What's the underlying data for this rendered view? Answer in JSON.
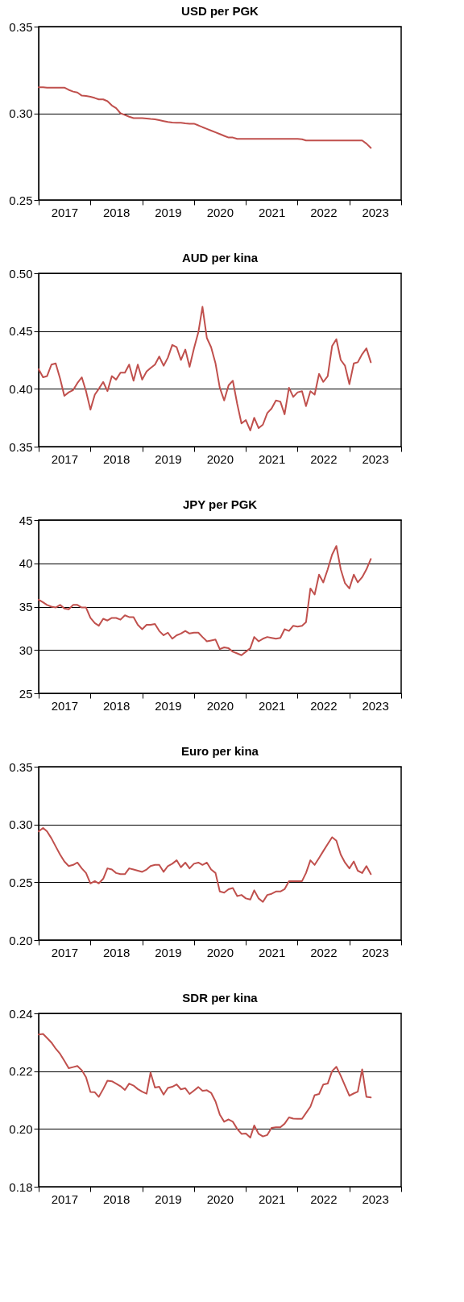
{
  "chart_data": [
    {
      "type": "line",
      "title": "USD per PGK",
      "x": [
        "2017-01",
        "2017-02",
        "2017-03",
        "2017-04",
        "2017-05",
        "2017-06",
        "2017-07",
        "2017-08",
        "2017-09",
        "2017-10",
        "2017-11",
        "2017-12",
        "2018-01",
        "2018-02",
        "2018-03",
        "2018-04",
        "2018-05",
        "2018-06",
        "2018-07",
        "2018-08",
        "2018-09",
        "2018-10",
        "2018-11",
        "2018-12",
        "2019-01",
        "2019-02",
        "2019-03",
        "2019-04",
        "2019-05",
        "2019-06",
        "2019-07",
        "2019-08",
        "2019-09",
        "2019-10",
        "2019-11",
        "2019-12",
        "2020-01",
        "2020-02",
        "2020-03",
        "2020-04",
        "2020-05",
        "2020-06",
        "2020-07",
        "2020-08",
        "2020-09",
        "2020-10",
        "2020-11",
        "2020-12",
        "2021-01",
        "2021-02",
        "2021-03",
        "2021-04",
        "2021-05",
        "2021-06",
        "2021-07",
        "2021-08",
        "2021-09",
        "2021-10",
        "2021-11",
        "2021-12",
        "2022-01",
        "2022-02",
        "2022-03",
        "2022-04",
        "2022-05",
        "2022-06",
        "2022-07",
        "2022-08",
        "2022-09",
        "2022-10",
        "2022-11",
        "2022-12",
        "2023-01",
        "2023-02",
        "2023-03",
        "2023-04",
        "2023-05",
        "2023-06"
      ],
      "series": [
        {
          "color": "#c0504d",
          "values": [
            0.315,
            0.315,
            0.3148,
            0.3148,
            0.3148,
            0.3148,
            0.3148,
            0.3135,
            0.3125,
            0.312,
            0.3102,
            0.31,
            0.3095,
            0.3088,
            0.308,
            0.308,
            0.307,
            0.3045,
            0.303,
            0.3,
            0.299,
            0.298,
            0.2972,
            0.2972,
            0.2972,
            0.297,
            0.2967,
            0.2965,
            0.296,
            0.2955,
            0.295,
            0.2947,
            0.2945,
            0.2945,
            0.2942,
            0.294,
            0.294,
            0.293,
            0.292,
            0.291,
            0.29,
            0.289,
            0.288,
            0.287,
            0.286,
            0.286,
            0.2852,
            0.2852,
            0.2852,
            0.2852,
            0.2852,
            0.2852,
            0.2852,
            0.2852,
            0.2852,
            0.2852,
            0.2852,
            0.2852,
            0.2852,
            0.2852,
            0.2852,
            0.285,
            0.2843,
            0.2843,
            0.2843,
            0.2843,
            0.2843,
            0.2843,
            0.2843,
            0.2843,
            0.2843,
            0.2843,
            0.2843,
            0.2843,
            0.2843,
            0.2843,
            0.2825,
            0.28
          ]
        }
      ],
      "xlim": [
        "2017-01",
        "2024-01"
      ],
      "xticks": [
        {
          "value": "2017-01",
          "label": null
        },
        {
          "value": "2017-07",
          "label": "2017"
        },
        {
          "value": "2018-01",
          "label": null
        },
        {
          "value": "2018-07",
          "label": "2018"
        },
        {
          "value": "2019-01",
          "label": null
        },
        {
          "value": "2019-07",
          "label": "2019"
        },
        {
          "value": "2020-01",
          "label": null
        },
        {
          "value": "2020-07",
          "label": "2020"
        },
        {
          "value": "2021-01",
          "label": null
        },
        {
          "value": "2021-07",
          "label": "2021"
        },
        {
          "value": "2022-01",
          "label": null
        },
        {
          "value": "2022-07",
          "label": "2022"
        },
        {
          "value": "2023-01",
          "label": null
        },
        {
          "value": "2023-07",
          "label": "2023"
        },
        {
          "value": "2024-01",
          "label": null
        }
      ],
      "ylim": [
        0.25,
        0.35
      ],
      "yticks": [
        0.25,
        {
          "value": 0.3,
          "label": "0.30"
        },
        0.35
      ],
      "grid": "y"
    },
    {
      "type": "line",
      "title": "AUD per kina",
      "x": [
        "2017-01",
        "2017-02",
        "2017-03",
        "2017-04",
        "2017-05",
        "2017-06",
        "2017-07",
        "2017-08",
        "2017-09",
        "2017-10",
        "2017-11",
        "2017-12",
        "2018-01",
        "2018-02",
        "2018-03",
        "2018-04",
        "2018-05",
        "2018-06",
        "2018-07",
        "2018-08",
        "2018-09",
        "2018-10",
        "2018-11",
        "2018-12",
        "2019-01",
        "2019-02",
        "2019-03",
        "2019-04",
        "2019-05",
        "2019-06",
        "2019-07",
        "2019-08",
        "2019-09",
        "2019-10",
        "2019-11",
        "2019-12",
        "2020-01",
        "2020-02",
        "2020-03",
        "2020-04",
        "2020-05",
        "2020-06",
        "2020-07",
        "2020-08",
        "2020-09",
        "2020-10",
        "2020-11",
        "2020-12",
        "2021-01",
        "2021-02",
        "2021-03",
        "2021-04",
        "2021-05",
        "2021-06",
        "2021-07",
        "2021-08",
        "2021-09",
        "2021-10",
        "2021-11",
        "2021-12",
        "2022-01",
        "2022-02",
        "2022-03",
        "2022-04",
        "2022-05",
        "2022-06",
        "2022-07",
        "2022-08",
        "2022-09",
        "2022-10",
        "2022-11",
        "2022-12",
        "2023-01",
        "2023-02",
        "2023-03",
        "2023-04",
        "2023-05",
        "2023-06"
      ],
      "series": [
        {
          "color": "#c0504d",
          "values": [
            0.417,
            0.41,
            0.411,
            0.421,
            0.422,
            0.409,
            0.394,
            0.397,
            0.399,
            0.405,
            0.41,
            0.398,
            0.382,
            0.395,
            0.4,
            0.406,
            0.398,
            0.411,
            0.408,
            0.414,
            0.414,
            0.421,
            0.407,
            0.421,
            0.408,
            0.415,
            0.418,
            0.421,
            0.428,
            0.42,
            0.427,
            0.438,
            0.436,
            0.425,
            0.434,
            0.419,
            0.435,
            0.449,
            0.471,
            0.444,
            0.436,
            0.422,
            0.401,
            0.39,
            0.403,
            0.407,
            0.387,
            0.37,
            0.373,
            0.364,
            0.375,
            0.366,
            0.369,
            0.379,
            0.383,
            0.39,
            0.389,
            0.378,
            0.401,
            0.393,
            0.397,
            0.398,
            0.385,
            0.398,
            0.395,
            0.413,
            0.406,
            0.411,
            0.437,
            0.443,
            0.425,
            0.42,
            0.404,
            0.422,
            0.423,
            0.43,
            0.435,
            0.423
          ]
        }
      ],
      "xlim": [
        "2017-01",
        "2024-01"
      ],
      "xticks": [
        {
          "value": "2017-01",
          "label": null
        },
        {
          "value": "2017-07",
          "label": "2017"
        },
        {
          "value": "2018-01",
          "label": null
        },
        {
          "value": "2018-07",
          "label": "2018"
        },
        {
          "value": "2019-01",
          "label": null
        },
        {
          "value": "2019-07",
          "label": "2019"
        },
        {
          "value": "2020-01",
          "label": null
        },
        {
          "value": "2020-07",
          "label": "2020"
        },
        {
          "value": "2021-01",
          "label": null
        },
        {
          "value": "2021-07",
          "label": "2021"
        },
        {
          "value": "2022-01",
          "label": null
        },
        {
          "value": "2022-07",
          "label": "2022"
        },
        {
          "value": "2023-01",
          "label": null
        },
        {
          "value": "2023-07",
          "label": "2023"
        },
        {
          "value": "2024-01",
          "label": null
        }
      ],
      "ylim": [
        0.35,
        0.5
      ],
      "yticks": [
        0.35,
        {
          "value": 0.4,
          "label": "0.40"
        },
        0.45,
        {
          "value": 0.5,
          "label": "0.50"
        }
      ],
      "grid": "y"
    },
    {
      "type": "line",
      "title": "JPY per PGK",
      "x": [
        "2017-01",
        "2017-02",
        "2017-03",
        "2017-04",
        "2017-05",
        "2017-06",
        "2017-07",
        "2017-08",
        "2017-09",
        "2017-10",
        "2017-11",
        "2017-12",
        "2018-01",
        "2018-02",
        "2018-03",
        "2018-04",
        "2018-05",
        "2018-06",
        "2018-07",
        "2018-08",
        "2018-09",
        "2018-10",
        "2018-11",
        "2018-12",
        "2019-01",
        "2019-02",
        "2019-03",
        "2019-04",
        "2019-05",
        "2019-06",
        "2019-07",
        "2019-08",
        "2019-09",
        "2019-10",
        "2019-11",
        "2019-12",
        "2020-01",
        "2020-02",
        "2020-03",
        "2020-04",
        "2020-05",
        "2020-06",
        "2020-07",
        "2020-08",
        "2020-09",
        "2020-10",
        "2020-11",
        "2020-12",
        "2021-01",
        "2021-02",
        "2021-03",
        "2021-04",
        "2021-05",
        "2021-06",
        "2021-07",
        "2021-08",
        "2021-09",
        "2021-10",
        "2021-11",
        "2021-12",
        "2022-01",
        "2022-02",
        "2022-03",
        "2022-04",
        "2022-05",
        "2022-06",
        "2022-07",
        "2022-08",
        "2022-09",
        "2022-10",
        "2022-11",
        "2022-12",
        "2023-01",
        "2023-02",
        "2023-03",
        "2023-04",
        "2023-05",
        "2023-06"
      ],
      "series": [
        {
          "color": "#c0504d",
          "values": [
            35.8,
            35.5,
            35.2,
            35.0,
            34.9,
            35.2,
            34.8,
            34.7,
            35.2,
            35.2,
            34.9,
            34.9,
            33.7,
            33.1,
            32.8,
            33.6,
            33.4,
            33.7,
            33.7,
            33.5,
            34.0,
            33.8,
            33.8,
            32.9,
            32.4,
            32.9,
            32.9,
            33.0,
            32.2,
            31.7,
            32.0,
            31.3,
            31.7,
            31.9,
            32.2,
            31.9,
            32.0,
            32.0,
            31.5,
            31.0,
            31.1,
            31.2,
            30.1,
            30.3,
            30.2,
            29.8,
            29.6,
            29.4,
            29.8,
            30.2,
            31.5,
            31.0,
            31.3,
            31.5,
            31.4,
            31.3,
            31.4,
            32.4,
            32.2,
            32.8,
            32.7,
            32.8,
            33.2,
            37.1,
            36.4,
            38.7,
            37.8,
            39.3,
            41.0,
            42.0,
            39.3,
            37.7,
            37.1,
            38.7,
            37.8,
            38.4,
            39.3,
            40.5
          ]
        }
      ],
      "xlim": [
        "2017-01",
        "2024-01"
      ],
      "xticks": [
        {
          "value": "2017-01",
          "label": null
        },
        {
          "value": "2017-07",
          "label": "2017"
        },
        {
          "value": "2018-01",
          "label": null
        },
        {
          "value": "2018-07",
          "label": "2018"
        },
        {
          "value": "2019-01",
          "label": null
        },
        {
          "value": "2019-07",
          "label": "2019"
        },
        {
          "value": "2020-01",
          "label": null
        },
        {
          "value": "2020-07",
          "label": "2020"
        },
        {
          "value": "2021-01",
          "label": null
        },
        {
          "value": "2021-07",
          "label": "2021"
        },
        {
          "value": "2022-01",
          "label": null
        },
        {
          "value": "2022-07",
          "label": "2022"
        },
        {
          "value": "2023-01",
          "label": null
        },
        {
          "value": "2023-07",
          "label": "2023"
        },
        {
          "value": "2024-01",
          "label": null
        }
      ],
      "ylim": [
        25,
        45
      ],
      "yticks": [
        25,
        30,
        35,
        40,
        45
      ],
      "grid": "y"
    },
    {
      "type": "line",
      "title": "Euro per kina",
      "x": [
        "2017-01",
        "2017-02",
        "2017-03",
        "2017-04",
        "2017-05",
        "2017-06",
        "2017-07",
        "2017-08",
        "2017-09",
        "2017-10",
        "2017-11",
        "2017-12",
        "2018-01",
        "2018-02",
        "2018-03",
        "2018-04",
        "2018-05",
        "2018-06",
        "2018-07",
        "2018-08",
        "2018-09",
        "2018-10",
        "2018-11",
        "2018-12",
        "2019-01",
        "2019-02",
        "2019-03",
        "2019-04",
        "2019-05",
        "2019-06",
        "2019-07",
        "2019-08",
        "2019-09",
        "2019-10",
        "2019-11",
        "2019-12",
        "2020-01",
        "2020-02",
        "2020-03",
        "2020-04",
        "2020-05",
        "2020-06",
        "2020-07",
        "2020-08",
        "2020-09",
        "2020-10",
        "2020-11",
        "2020-12",
        "2021-01",
        "2021-02",
        "2021-03",
        "2021-04",
        "2021-05",
        "2021-06",
        "2021-07",
        "2021-08",
        "2021-09",
        "2021-10",
        "2021-11",
        "2021-12",
        "2022-01",
        "2022-02",
        "2022-03",
        "2022-04",
        "2022-05",
        "2022-06",
        "2022-07",
        "2022-08",
        "2022-09",
        "2022-10",
        "2022-11",
        "2022-12",
        "2023-01",
        "2023-02",
        "2023-03",
        "2023-04",
        "2023-05",
        "2023-06"
      ],
      "series": [
        {
          "color": "#c0504d",
          "values": [
            0.294,
            0.297,
            0.294,
            0.288,
            0.281,
            0.274,
            0.268,
            0.264,
            0.265,
            0.267,
            0.262,
            0.258,
            0.249,
            0.251,
            0.249,
            0.253,
            0.262,
            0.261,
            0.258,
            0.257,
            0.257,
            0.262,
            0.261,
            0.26,
            0.259,
            0.261,
            0.264,
            0.265,
            0.265,
            0.259,
            0.264,
            0.266,
            0.269,
            0.263,
            0.267,
            0.262,
            0.266,
            0.267,
            0.265,
            0.267,
            0.261,
            0.258,
            0.242,
            0.241,
            0.244,
            0.245,
            0.238,
            0.239,
            0.236,
            0.235,
            0.243,
            0.236,
            0.233,
            0.239,
            0.24,
            0.242,
            0.242,
            0.244,
            0.251,
            0.251,
            0.251,
            0.251,
            0.258,
            0.269,
            0.265,
            0.271,
            0.277,
            0.283,
            0.289,
            0.286,
            0.274,
            0.267,
            0.262,
            0.268,
            0.26,
            0.258,
            0.264,
            0.257
          ]
        }
      ],
      "xlim": [
        "2017-01",
        "2024-01"
      ],
      "xticks": [
        {
          "value": "2017-01",
          "label": null
        },
        {
          "value": "2017-07",
          "label": "2017"
        },
        {
          "value": "2018-01",
          "label": null
        },
        {
          "value": "2018-07",
          "label": "2018"
        },
        {
          "value": "2019-01",
          "label": null
        },
        {
          "value": "2019-07",
          "label": "2019"
        },
        {
          "value": "2020-01",
          "label": null
        },
        {
          "value": "2020-07",
          "label": "2020"
        },
        {
          "value": "2021-01",
          "label": null
        },
        {
          "value": "2021-07",
          "label": "2021"
        },
        {
          "value": "2022-01",
          "label": null
        },
        {
          "value": "2022-07",
          "label": "2022"
        },
        {
          "value": "2023-01",
          "label": null
        },
        {
          "value": "2023-07",
          "label": "2023"
        },
        {
          "value": "2024-01",
          "label": null
        }
      ],
      "ylim": [
        0.2,
        0.35
      ],
      "yticks": [
        {
          "value": 0.2,
          "label": "0.20"
        },
        0.25,
        {
          "value": 0.3,
          "label": "0.30"
        },
        0.35
      ],
      "grid": "y"
    },
    {
      "type": "line",
      "title": "SDR per kina",
      "x": [
        "2017-01",
        "2017-02",
        "2017-03",
        "2017-04",
        "2017-05",
        "2017-06",
        "2017-07",
        "2017-08",
        "2017-09",
        "2017-10",
        "2017-11",
        "2017-12",
        "2018-01",
        "2018-02",
        "2018-03",
        "2018-04",
        "2018-05",
        "2018-06",
        "2018-07",
        "2018-08",
        "2018-09",
        "2018-10",
        "2018-11",
        "2018-12",
        "2019-01",
        "2019-02",
        "2019-03",
        "2019-04",
        "2019-05",
        "2019-06",
        "2019-07",
        "2019-08",
        "2019-09",
        "2019-10",
        "2019-11",
        "2019-12",
        "2020-01",
        "2020-02",
        "2020-03",
        "2020-04",
        "2020-05",
        "2020-06",
        "2020-07",
        "2020-08",
        "2020-09",
        "2020-10",
        "2020-11",
        "2020-12",
        "2021-01",
        "2021-02",
        "2021-03",
        "2021-04",
        "2021-05",
        "2021-06",
        "2021-07",
        "2021-08",
        "2021-09",
        "2021-10",
        "2021-11",
        "2021-12",
        "2022-01",
        "2022-02",
        "2022-03",
        "2022-04",
        "2022-05",
        "2022-06",
        "2022-07",
        "2022-08",
        "2022-09",
        "2022-10",
        "2022-11",
        "2022-12",
        "2023-01",
        "2023-02",
        "2023-03",
        "2023-04",
        "2023-05",
        "2023-06"
      ],
      "series": [
        {
          "color": "#c0504d",
          "values": [
            0.2327,
            0.2329,
            0.2315,
            0.2299,
            0.2278,
            0.226,
            0.2236,
            0.221,
            0.2214,
            0.2218,
            0.2203,
            0.2179,
            0.2128,
            0.2127,
            0.2111,
            0.2138,
            0.2167,
            0.2165,
            0.2157,
            0.2148,
            0.2135,
            0.2157,
            0.215,
            0.2138,
            0.2129,
            0.2122,
            0.2195,
            0.2143,
            0.2146,
            0.2119,
            0.2142,
            0.2146,
            0.2154,
            0.2137,
            0.2141,
            0.2121,
            0.2133,
            0.2145,
            0.2132,
            0.2134,
            0.2125,
            0.2095,
            0.205,
            0.2025,
            0.2033,
            0.2025,
            0.2,
            0.1983,
            0.1984,
            0.197,
            0.2012,
            0.1983,
            0.1974,
            0.1979,
            0.2004,
            0.2006,
            0.2006,
            0.2018,
            0.204,
            0.2036,
            0.2035,
            0.2035,
            0.2055,
            0.2077,
            0.2117,
            0.2121,
            0.2154,
            0.2157,
            0.22,
            0.2215,
            0.2184,
            0.215,
            0.2115,
            0.2123,
            0.2129,
            0.2206,
            0.2111,
            0.2109
          ]
        }
      ],
      "xlim": [
        "2017-01",
        "2024-01"
      ],
      "xticks": [
        {
          "value": "2017-01",
          "label": null
        },
        {
          "value": "2017-07",
          "label": "2017"
        },
        {
          "value": "2018-01",
          "label": null
        },
        {
          "value": "2018-07",
          "label": "2018"
        },
        {
          "value": "2019-01",
          "label": null
        },
        {
          "value": "2019-07",
          "label": "2019"
        },
        {
          "value": "2020-01",
          "label": null
        },
        {
          "value": "2020-07",
          "label": "2020"
        },
        {
          "value": "2021-01",
          "label": null
        },
        {
          "value": "2021-07",
          "label": "2021"
        },
        {
          "value": "2022-01",
          "label": null
        },
        {
          "value": "2022-07",
          "label": "2022"
        },
        {
          "value": "2023-01",
          "label": null
        },
        {
          "value": "2023-07",
          "label": "2023"
        },
        {
          "value": "2024-01",
          "label": null
        }
      ],
      "ylim": [
        0.18,
        0.24
      ],
      "yticks": [
        0.18,
        {
          "value": 0.2,
          "label": "0.20"
        },
        0.22,
        0.24
      ],
      "grid": "y"
    }
  ]
}
